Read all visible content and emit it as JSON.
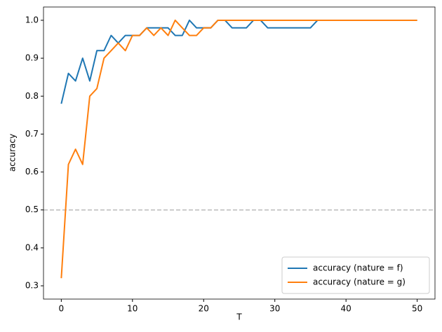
{
  "chart_data": {
    "type": "line",
    "xlabel": "T",
    "ylabel": "accuracy",
    "x": [
      0,
      1,
      2,
      3,
      4,
      5,
      6,
      7,
      8,
      9,
      10,
      11,
      12,
      13,
      14,
      15,
      16,
      17,
      18,
      19,
      20,
      21,
      22,
      23,
      24,
      25,
      26,
      27,
      28,
      29,
      30,
      31,
      32,
      33,
      34,
      35,
      36,
      37,
      38,
      39,
      40,
      41,
      42,
      43,
      44,
      45,
      46,
      47,
      48,
      49,
      50
    ],
    "series": [
      {
        "name": "accuracy (nature = f)",
        "color": "#1f77b4",
        "values": [
          0.78,
          0.86,
          0.84,
          0.9,
          0.84,
          0.92,
          0.92,
          0.96,
          0.94,
          0.96,
          0.96,
          0.96,
          0.98,
          0.98,
          0.98,
          0.98,
          0.96,
          0.96,
          1.0,
          0.98,
          0.98,
          0.98,
          1.0,
          1.0,
          0.98,
          0.98,
          0.98,
          1.0,
          1.0,
          0.98,
          0.98,
          0.98,
          0.98,
          0.98,
          0.98,
          0.98,
          1.0,
          1.0,
          1.0,
          1.0,
          1.0,
          1.0,
          1.0,
          1.0,
          1.0,
          1.0,
          1.0,
          1.0,
          1.0,
          1.0,
          1.0
        ]
      },
      {
        "name": "accuracy (nature = g)",
        "color": "#ff7f0e",
        "values": [
          0.32,
          0.62,
          0.66,
          0.62,
          0.8,
          0.82,
          0.9,
          0.92,
          0.94,
          0.92,
          0.96,
          0.96,
          0.98,
          0.96,
          0.98,
          0.96,
          1.0,
          0.98,
          0.96,
          0.96,
          0.98,
          0.98,
          1.0,
          1.0,
          1.0,
          1.0,
          1.0,
          1.0,
          1.0,
          1.0,
          1.0,
          1.0,
          1.0,
          1.0,
          1.0,
          1.0,
          1.0,
          1.0,
          1.0,
          1.0,
          1.0,
          1.0,
          1.0,
          1.0,
          1.0,
          1.0,
          1.0,
          1.0,
          1.0,
          1.0,
          1.0
        ]
      }
    ],
    "reference_line": {
      "value": 0.5,
      "color": "#bbbbbb"
    },
    "xlim": [
      -2.5,
      52.5
    ],
    "xticks": [
      0,
      10,
      20,
      30,
      40,
      50
    ],
    "ylim": [
      0.265,
      1.035
    ],
    "yticks": [
      0.3,
      0.4,
      0.5,
      0.6,
      0.7,
      0.8,
      0.9,
      {
        "value": 1,
        "label": "1.0"
      }
    ],
    "legend": "lower right"
  }
}
